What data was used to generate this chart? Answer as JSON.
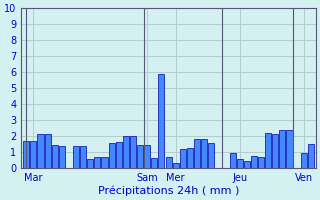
{
  "values": [
    1.7,
    1.7,
    2.1,
    2.1,
    1.4,
    1.35,
    0,
    1.35,
    1.35,
    0.55,
    0.65,
    0.65,
    1.55,
    1.6,
    2.0,
    2.0,
    1.45,
    1.45,
    0.6,
    5.85,
    0.65,
    0.3,
    1.15,
    1.25,
    1.8,
    1.8,
    1.55,
    0,
    0,
    0.9,
    0.55,
    0.4,
    0.75,
    0.65,
    2.2,
    2.1,
    2.35,
    2.35,
    0,
    0.95,
    1.5
  ],
  "bar_colors": [
    "#1e4fd8",
    "#1e4fd8",
    "#1e4fd8",
    "#1e4fd8",
    "#1e4fd8",
    "#1e4fd8",
    "#1e4fd8",
    "#1e4fd8",
    "#1e4fd8",
    "#1e4fd8",
    "#1e4fd8",
    "#1e4fd8",
    "#1e4fd8",
    "#1e4fd8",
    "#1e4fd8",
    "#1e4fd8",
    "#1e4fd8",
    "#1e4fd8",
    "#1e4fd8",
    "#1e4fd8",
    "#1e4fd8",
    "#1e4fd8",
    "#1e4fd8",
    "#1e4fd8",
    "#1e4fd8",
    "#1e4fd8",
    "#1e4fd8",
    "#1e4fd8",
    "#1e4fd8",
    "#1e4fd8",
    "#1e4fd8",
    "#1e4fd8",
    "#1e4fd8",
    "#1e4fd8",
    "#1e4fd8",
    "#1e4fd8",
    "#1e4fd8",
    "#1e4fd8",
    "#1e4fd8",
    "#1e4fd8",
    "#1e4fd8"
  ],
  "xlabel": "Précipitations 24h ( mm )",
  "ylabel": "",
  "ylim": [
    0,
    10
  ],
  "yticks": [
    0,
    1,
    2,
    3,
    4,
    5,
    6,
    7,
    8,
    9,
    10
  ],
  "bg_color": "#d4f0f0",
  "grid_color": "#b0cccc",
  "bar_edge_color": "#0000aa",
  "bar_fill_color": "#4488ff",
  "day_labels": [
    "Mar",
    "Sam",
    "Mer",
    "Jeu",
    "Ven"
  ],
  "day_positions": [
    1,
    17,
    21,
    30,
    39
  ],
  "vline_positions": [
    0,
    16.5,
    27.5,
    37.5
  ],
  "n_bars": 41
}
